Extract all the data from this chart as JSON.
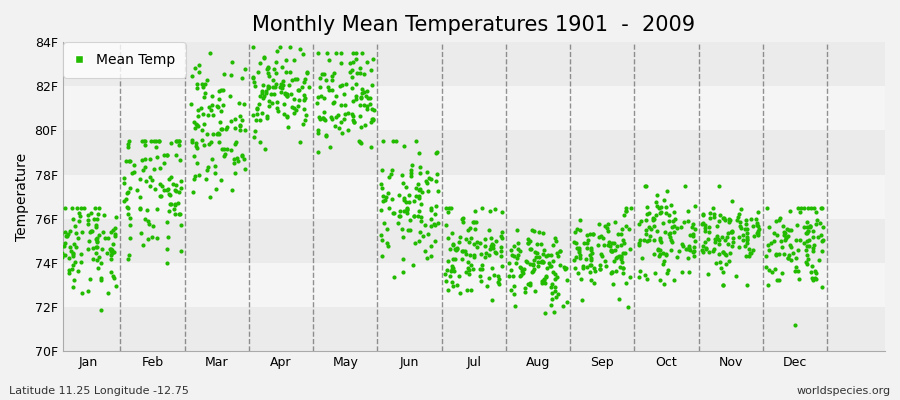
{
  "title": "Monthly Mean Temperatures 1901  -  2009",
  "ylabel": "Temperature",
  "subtitle_left": "Latitude 11.25 Longitude -12.75",
  "subtitle_right": "worldspecies.org",
  "legend_label": "Mean Temp",
  "dot_color": "#22bb00",
  "background_color": "#f2f2f2",
  "band_colors": [
    "#ebebeb",
    "#f5f5f5"
  ],
  "ylim": [
    70,
    84
  ],
  "yticks": [
    70,
    72,
    74,
    76,
    78,
    80,
    82,
    84
  ],
  "ytick_labels": [
    "70F",
    "72F",
    "74F",
    "76F",
    "78F",
    "80F",
    "82F",
    "84F"
  ],
  "months": [
    "Jan",
    "Feb",
    "Mar",
    "Apr",
    "May",
    "Jun",
    "Jul",
    "Aug",
    "Sep",
    "Oct",
    "Nov",
    "Dec"
  ],
  "n_years": 109,
  "monthly_mean": [
    75.0,
    77.2,
    80.2,
    81.8,
    81.2,
    76.5,
    74.5,
    73.8,
    74.5,
    75.2,
    75.2,
    75.0
  ],
  "monthly_std": [
    1.2,
    1.6,
    1.4,
    1.0,
    1.3,
    1.4,
    1.1,
    0.9,
    0.9,
    0.9,
    0.9,
    1.1
  ],
  "monthly_min": [
    70.5,
    72.5,
    76.0,
    79.0,
    77.5,
    72.5,
    71.0,
    71.5,
    72.0,
    73.0,
    73.0,
    71.0
  ],
  "monthly_max": [
    76.5,
    79.5,
    83.5,
    83.8,
    83.5,
    79.5,
    76.5,
    75.5,
    76.5,
    77.5,
    77.5,
    76.5
  ],
  "title_fontsize": 15,
  "label_fontsize": 10,
  "tick_fontsize": 9,
  "dot_size": 9,
  "grid_color": "#666666",
  "grid_linestyle": "--",
  "grid_linewidth": 1.0,
  "xlim_left": -0.4,
  "xlim_right": 12.4
}
